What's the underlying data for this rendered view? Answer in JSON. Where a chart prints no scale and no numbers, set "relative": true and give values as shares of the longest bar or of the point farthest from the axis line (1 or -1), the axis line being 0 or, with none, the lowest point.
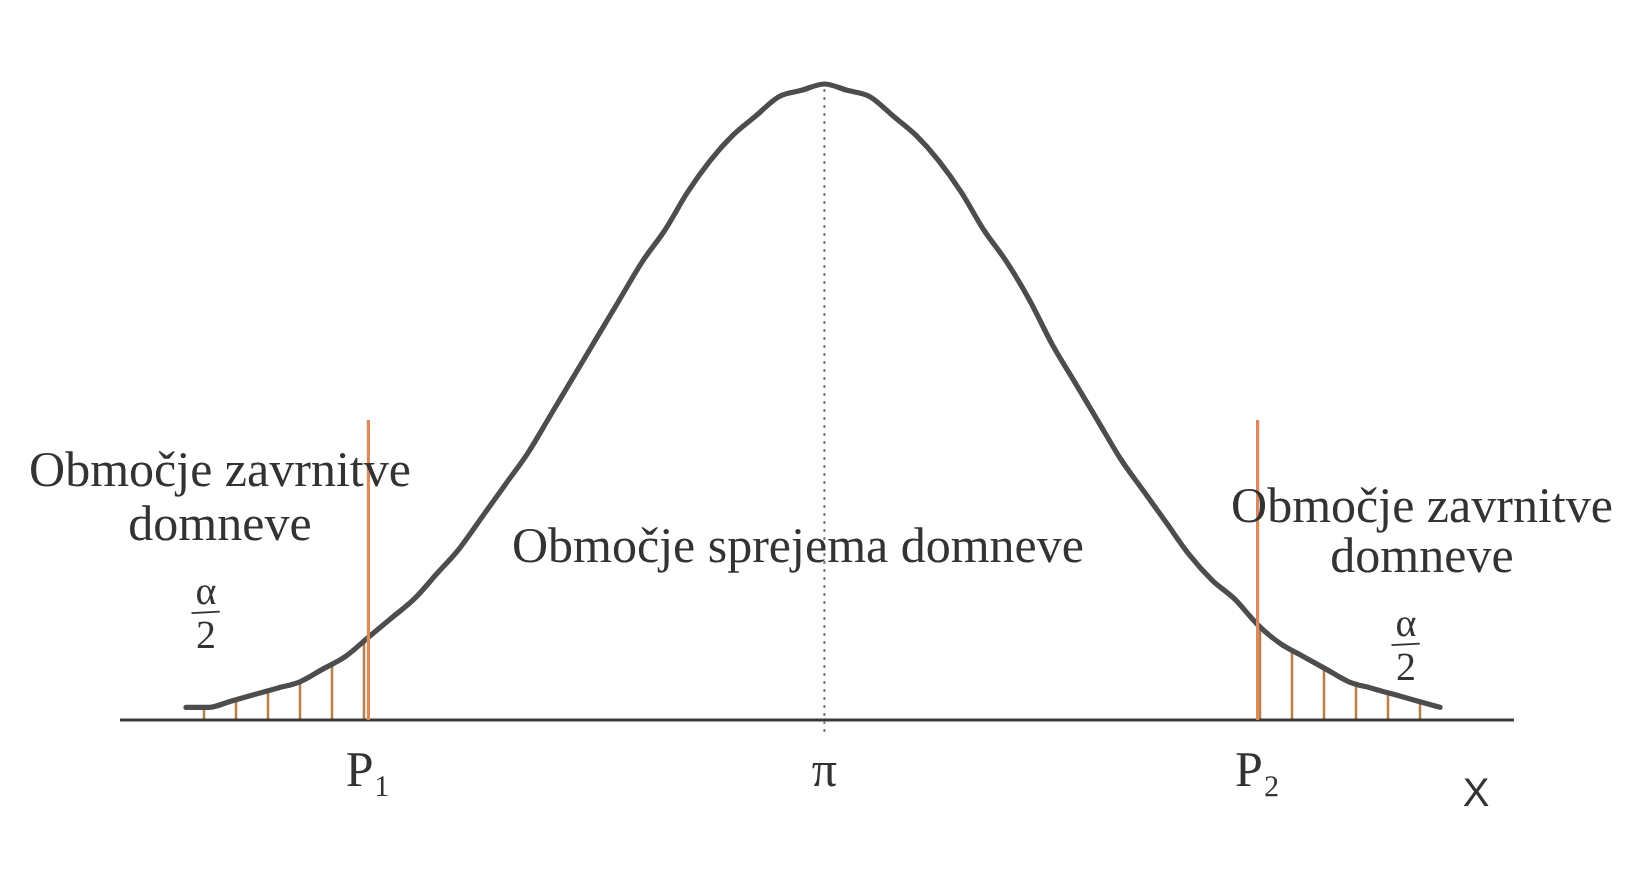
{
  "chart_data": {
    "type": "line",
    "relative": true,
    "categories": [
      null,
      null,
      null,
      null,
      null,
      null,
      null,
      null,
      "P₁",
      null,
      null,
      null,
      null,
      null,
      null,
      null,
      null,
      null,
      null,
      null,
      null,
      null,
      null,
      null,
      null,
      null,
      null,
      null,
      "π",
      null,
      null,
      null,
      null,
      null,
      null,
      null,
      null,
      null,
      null,
      null,
      null,
      null,
      null,
      null,
      null,
      null,
      null,
      "P₂",
      null,
      null,
      null,
      null,
      null,
      null,
      null,
      null
    ],
    "xlabel": "X",
    "series": [
      {
        "type": "area",
        "color": "#b5824e",
        "values": [
          0.02,
          0.02,
          0.03,
          0.04,
          0.05,
          0.06,
          0.08,
          0.1,
          0.13,
          null,
          null,
          null,
          null,
          null,
          null,
          null,
          null,
          null,
          null,
          null,
          null,
          null,
          null,
          null,
          null,
          null,
          null,
          null,
          null,
          null,
          null,
          null,
          null,
          null,
          null,
          null,
          null,
          null,
          null,
          null,
          null,
          null,
          null,
          null,
          null,
          null,
          null,
          0.15,
          0.12,
          0.1,
          0.08,
          0.06,
          0.05,
          0.04,
          0.03,
          0.02
        ]
      },
      {
        "color": "#4d4d4d",
        "values": [
          0.02,
          0.02,
          0.03,
          0.04,
          0.05,
          0.06,
          0.08,
          0.1,
          0.13,
          0.16,
          0.19,
          0.23,
          0.27,
          0.32,
          0.37,
          0.42,
          0.48,
          0.54,
          0.6,
          0.66,
          0.72,
          0.77,
          0.83,
          0.88,
          0.92,
          0.95,
          0.98,
          0.99,
          1,
          0.99,
          0.98,
          0.95,
          0.92,
          0.88,
          0.83,
          0.77,
          0.72,
          0.66,
          0.59,
          0.53,
          0.47,
          0.41,
          0.36,
          0.31,
          0.26,
          0.22,
          0.19,
          0.15,
          0.12,
          0.1,
          0.08,
          0.06,
          0.05,
          0.04,
          0.03,
          0.02
        ]
      }
    ],
    "ref_lines": [
      {
        "axis": "x",
        "value": "P₁",
        "color": "#dc8a5c"
      },
      {
        "axis": "x",
        "value": "π",
        "color": "#777777",
        "line_style": "dotted"
      },
      {
        "axis": "x",
        "value": "P₂",
        "color": "#dc8a5c"
      }
    ],
    "annotations": [
      "Območje zavrnitve domneve",
      "α/2",
      "Območje sprejema domneve",
      "Območje zavrnitve domneve",
      "α/2"
    ]
  }
}
